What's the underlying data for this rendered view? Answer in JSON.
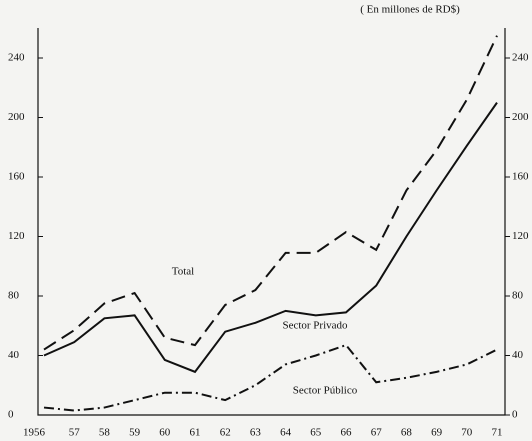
{
  "chart_data": {
    "type": "line",
    "subtitle": "( En millones de RD$)",
    "categories": [
      "1956",
      "57",
      "58",
      "59",
      "60",
      "61",
      "62",
      "63",
      "64",
      "65",
      "66",
      "67",
      "68",
      "69",
      "70",
      "71"
    ],
    "series": [
      {
        "name": "Total",
        "color": "#111111",
        "style": "dashed",
        "values": [
          44,
          57,
          75,
          82,
          52,
          47,
          74,
          84,
          109,
          109,
          123,
          111,
          151,
          178,
          212,
          255
        ]
      },
      {
        "name": "Sector Privado",
        "color": "#111111",
        "style": "solid",
        "values": [
          40,
          49,
          65,
          67,
          37,
          29,
          56,
          62,
          70,
          67,
          69,
          87,
          120,
          151,
          181,
          210
        ]
      },
      {
        "name": "Sector Público",
        "color": "#111111",
        "style": "dashdot",
        "values": [
          5,
          3,
          5,
          10,
          15,
          15,
          10,
          20,
          34,
          40,
          47,
          22,
          25,
          29,
          34,
          44
        ]
      }
    ],
    "ylim": [
      0,
      240
    ],
    "yticks": [
      0,
      40,
      80,
      120,
      160,
      200,
      240
    ],
    "y2lim": [
      0,
      240
    ],
    "y2ticks": [
      0,
      40,
      80,
      120,
      160,
      200,
      240
    ],
    "grid": false
  }
}
